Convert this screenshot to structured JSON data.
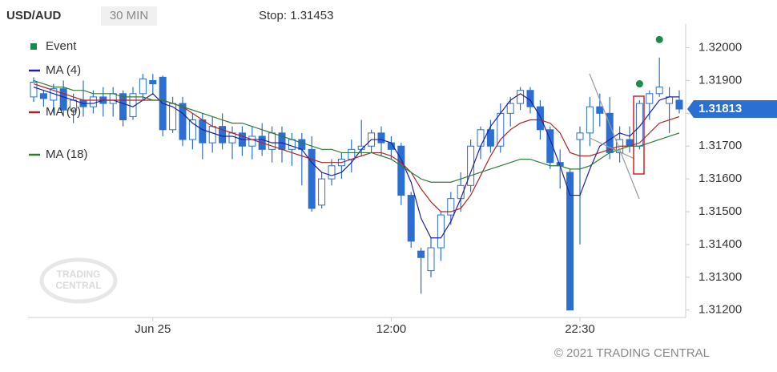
{
  "chart_data": {
    "type": "candlestick",
    "symbol": "USD/AUD",
    "timeframe": "30 MIN",
    "stop_text": "Stop: 1.31453",
    "copyright": "© 2021 TRADING CENTRAL",
    "watermark": [
      "TRADING",
      "CENTRAL"
    ],
    "categories": [
      null,
      null,
      null,
      null,
      null,
      null,
      null,
      null,
      null,
      null,
      null,
      null,
      "Jun 25",
      null,
      null,
      null,
      null,
      null,
      null,
      null,
      null,
      null,
      null,
      null,
      null,
      null,
      null,
      null,
      null,
      null,
      null,
      null,
      null,
      null,
      null,
      null,
      "12:00",
      null,
      null,
      null,
      null,
      null,
      null,
      null,
      null,
      null,
      null,
      null,
      null,
      null,
      null,
      null,
      null,
      null,
      null,
      "22:30",
      null,
      null,
      null,
      null,
      null,
      null,
      null,
      null,
      null,
      null
    ],
    "open": [
      1.3185,
      1.3186,
      1.3184,
      1.31875,
      1.3181,
      1.3184,
      1.3182,
      1.3185,
      1.3183,
      1.3186,
      1.3179,
      1.3186,
      1.319,
      1.3191,
      1.3175,
      1.3183,
      1.3172,
      1.3178,
      1.3171,
      1.3176,
      1.3171,
      1.3174,
      1.317,
      1.3173,
      1.3169,
      1.3174,
      1.3169,
      1.3172,
      1.3169,
      1.3152,
      1.316,
      1.3164,
      1.3166,
      1.3169,
      1.317,
      1.3174,
      1.3171,
      1.317,
      1.3155,
      1.3138,
      1.3132,
      1.3139,
      1.3149,
      1.3154,
      1.3158,
      1.317,
      1.3175,
      1.317,
      1.318,
      1.3183,
      1.3187,
      1.3182,
      1.3175,
      1.3165,
      1.3162,
      1.3172,
      1.3174,
      1.3182,
      1.318,
      1.3168,
      1.3172,
      1.317,
      1.3183,
      1.3186,
      1.3183,
      1.3184
    ],
    "high": [
      1.3191,
      1.3187,
      1.3189,
      1.319,
      1.3186,
      1.319,
      1.3187,
      1.3188,
      1.3188,
      1.3187,
      1.3188,
      1.3192,
      1.3192,
      1.31915,
      1.3185,
      1.3185,
      1.318,
      1.318,
      1.3179,
      1.318,
      1.3176,
      1.3176,
      1.3176,
      1.3177,
      1.3176,
      1.3176,
      1.3174,
      1.3174,
      1.3173,
      1.3162,
      1.3166,
      1.3168,
      1.3172,
      1.3178,
      1.3175,
      1.3176,
      1.3173,
      1.3171,
      1.3156,
      1.3139,
      1.3142,
      1.315,
      1.3156,
      1.3162,
      1.3172,
      1.3176,
      1.3178,
      1.3183,
      1.3185,
      1.3188,
      1.3188,
      1.3184,
      1.3176,
      1.3169,
      1.3163,
      1.3176,
      1.3185,
      1.3186,
      1.3185,
      1.3176,
      1.3176,
      1.3184,
      1.3187,
      1.3197,
      1.3188,
      1.3187
    ],
    "low": [
      1.31835,
      1.3182,
      1.318,
      1.3179,
      1.3177,
      1.3179,
      1.318,
      1.3179,
      1.3179,
      1.3176,
      1.3178,
      1.3184,
      1.3186,
      1.3173,
      1.3174,
      1.317,
      1.3169,
      1.3166,
      1.3168,
      1.3169,
      1.3166,
      1.3167,
      1.3166,
      1.3167,
      1.3165,
      1.3165,
      1.3164,
      1.3158,
      1.315,
      1.3151,
      1.3158,
      1.316,
      1.3162,
      1.3167,
      1.3168,
      1.3167,
      1.3166,
      1.3152,
      1.3139,
      1.3125,
      1.313,
      1.3135,
      1.3146,
      1.315,
      1.3156,
      1.3166,
      1.3168,
      1.3168,
      1.3176,
      1.3181,
      1.318,
      1.3172,
      1.3163,
      1.3157,
      1.312,
      1.314,
      1.317,
      1.3176,
      1.3166,
      1.3165,
      1.3168,
      1.3169,
      1.3178,
      1.3185,
      1.3174,
      1.318
    ],
    "close": [
      1.31895,
      1.31845,
      1.31875,
      1.3181,
      1.3184,
      1.3182,
      1.3185,
      1.3183,
      1.3186,
      1.3178,
      1.3186,
      1.31905,
      1.3189,
      1.3175,
      1.3183,
      1.3172,
      1.3178,
      1.3171,
      1.3176,
      1.3171,
      1.3174,
      1.317,
      1.3173,
      1.3169,
      1.3174,
      1.3169,
      1.3172,
      1.3169,
      1.3151,
      1.316,
      1.3164,
      1.3166,
      1.3169,
      1.317,
      1.3174,
      1.3171,
      1.3169,
      1.3155,
      1.3141,
      1.3136,
      1.3139,
      1.3149,
      1.3154,
      1.3158,
      1.317,
      1.3175,
      1.317,
      1.318,
      1.3183,
      1.3187,
      1.3182,
      1.3175,
      1.3165,
      1.3164,
      1.312,
      1.3174,
      1.3182,
      1.318,
      1.3168,
      1.3172,
      1.317,
      1.3183,
      1.3186,
      1.3188,
      1.3185,
      1.31813
    ],
    "up_color": "#ffffff",
    "down_color": "#2a6fd1",
    "candle_outline": "#2a6fd1",
    "event_name": "Event",
    "event_color": "#1b8a4a",
    "event_values": [
      null,
      null,
      null,
      null,
      null,
      null,
      null,
      null,
      null,
      null,
      null,
      null,
      null,
      null,
      null,
      null,
      null,
      null,
      null,
      null,
      null,
      null,
      null,
      null,
      null,
      null,
      null,
      null,
      null,
      null,
      null,
      null,
      null,
      null,
      null,
      null,
      null,
      null,
      null,
      null,
      null,
      null,
      null,
      null,
      null,
      null,
      null,
      null,
      null,
      null,
      null,
      null,
      null,
      null,
      null,
      null,
      null,
      null,
      null,
      null,
      null,
      1.3189,
      null,
      1.32025,
      null,
      null
    ],
    "series": [
      {
        "name": "MA (4)",
        "color": "#1f1fa8",
        "values": [
          1.3188,
          1.3187,
          1.3186,
          1.3185,
          1.3184,
          1.3183,
          1.3183,
          1.3184,
          1.3184,
          1.3183,
          1.3182,
          1.3184,
          1.3186,
          1.3183,
          1.3182,
          1.318,
          1.3177,
          1.3175,
          1.3174,
          1.3173,
          1.3173,
          1.3172,
          1.3172,
          1.3172,
          1.3171,
          1.3171,
          1.317,
          1.3169,
          1.3165,
          1.3162,
          1.3161,
          1.3162,
          1.3165,
          1.3169,
          1.3172,
          1.3172,
          1.3171,
          1.3166,
          1.3159,
          1.3148,
          1.3142,
          1.3142,
          1.3147,
          1.3154,
          1.3162,
          1.317,
          1.3176,
          1.318,
          1.3184,
          1.3186,
          1.3184,
          1.3179,
          1.3172,
          1.3164,
          1.3155,
          1.3155,
          1.3163,
          1.317,
          1.3172,
          1.3174,
          1.3173,
          1.3176,
          1.318,
          1.3184,
          1.3185,
          1.3185
        ]
      },
      {
        "name": "MA (9)",
        "color": "#b22222",
        "values": [
          1.3189,
          1.3188,
          1.3187,
          1.3186,
          1.3185,
          1.3184,
          1.3184,
          1.3184,
          1.3184,
          1.3184,
          1.3184,
          1.3184,
          1.3184,
          1.3184,
          1.3183,
          1.3182,
          1.318,
          1.3178,
          1.3176,
          1.3175,
          1.3174,
          1.3173,
          1.3172,
          1.3171,
          1.317,
          1.3169,
          1.3168,
          1.3167,
          1.3166,
          1.3165,
          1.3165,
          1.3165,
          1.3166,
          1.3167,
          1.3168,
          1.3168,
          1.3167,
          1.3165,
          1.3162,
          1.3157,
          1.3153,
          1.315,
          1.315,
          1.3151,
          1.3155,
          1.3161,
          1.3167,
          1.3172,
          1.3175,
          1.3177,
          1.3178,
          1.3178,
          1.3177,
          1.3174,
          1.3168,
          1.3167,
          1.3167,
          1.3168,
          1.3169,
          1.317,
          1.317,
          1.3171,
          1.3174,
          1.3177,
          1.3178,
          1.3179
        ]
      },
      {
        "name": "MA (18)",
        "color": "#2e7d32",
        "values": [
          1.319,
          1.3189,
          1.3188,
          1.3188,
          1.3187,
          1.3187,
          1.3186,
          1.3186,
          1.3186,
          1.3185,
          1.3185,
          1.3185,
          1.3184,
          1.3184,
          1.3183,
          1.3182,
          1.3181,
          1.318,
          1.3179,
          1.3178,
          1.3177,
          1.3177,
          1.3176,
          1.3175,
          1.3174,
          1.3173,
          1.3172,
          1.3171,
          1.317,
          1.3169,
          1.3169,
          1.3168,
          1.3168,
          1.3168,
          1.3168,
          1.3167,
          1.3166,
          1.3164,
          1.3162,
          1.316,
          1.3159,
          1.3159,
          1.3159,
          1.316,
          1.3161,
          1.3162,
          1.3163,
          1.3164,
          1.3165,
          1.3166,
          1.3166,
          1.3165,
          1.3164,
          1.3164,
          1.3163,
          1.3163,
          1.3164,
          1.3166,
          1.3168,
          1.3169,
          1.317,
          1.317,
          1.3171,
          1.3172,
          1.3173,
          1.3174
        ]
      }
    ],
    "last_price": 1.31813,
    "last_price_color": "#2a6fd1",
    "ylim": [
      1.3117,
      1.3206
    ],
    "yticks": [
      {
        "value": 1.312,
        "label": "1.31200"
      },
      {
        "value": 1.313,
        "label": "1.31300"
      },
      {
        "value": 1.314,
        "label": "1.31400"
      },
      {
        "value": 1.315,
        "label": "1.31500"
      },
      {
        "value": 1.316,
        "label": "1.31600"
      },
      {
        "value": 1.317,
        "label": "1.31700"
      },
      {
        "value": 1.318,
        "label": "1.31800"
      },
      {
        "value": 1.319,
        "label": "1.31900"
      },
      {
        "value": 1.32,
        "label": "1.32000"
      }
    ],
    "grid": false
  }
}
